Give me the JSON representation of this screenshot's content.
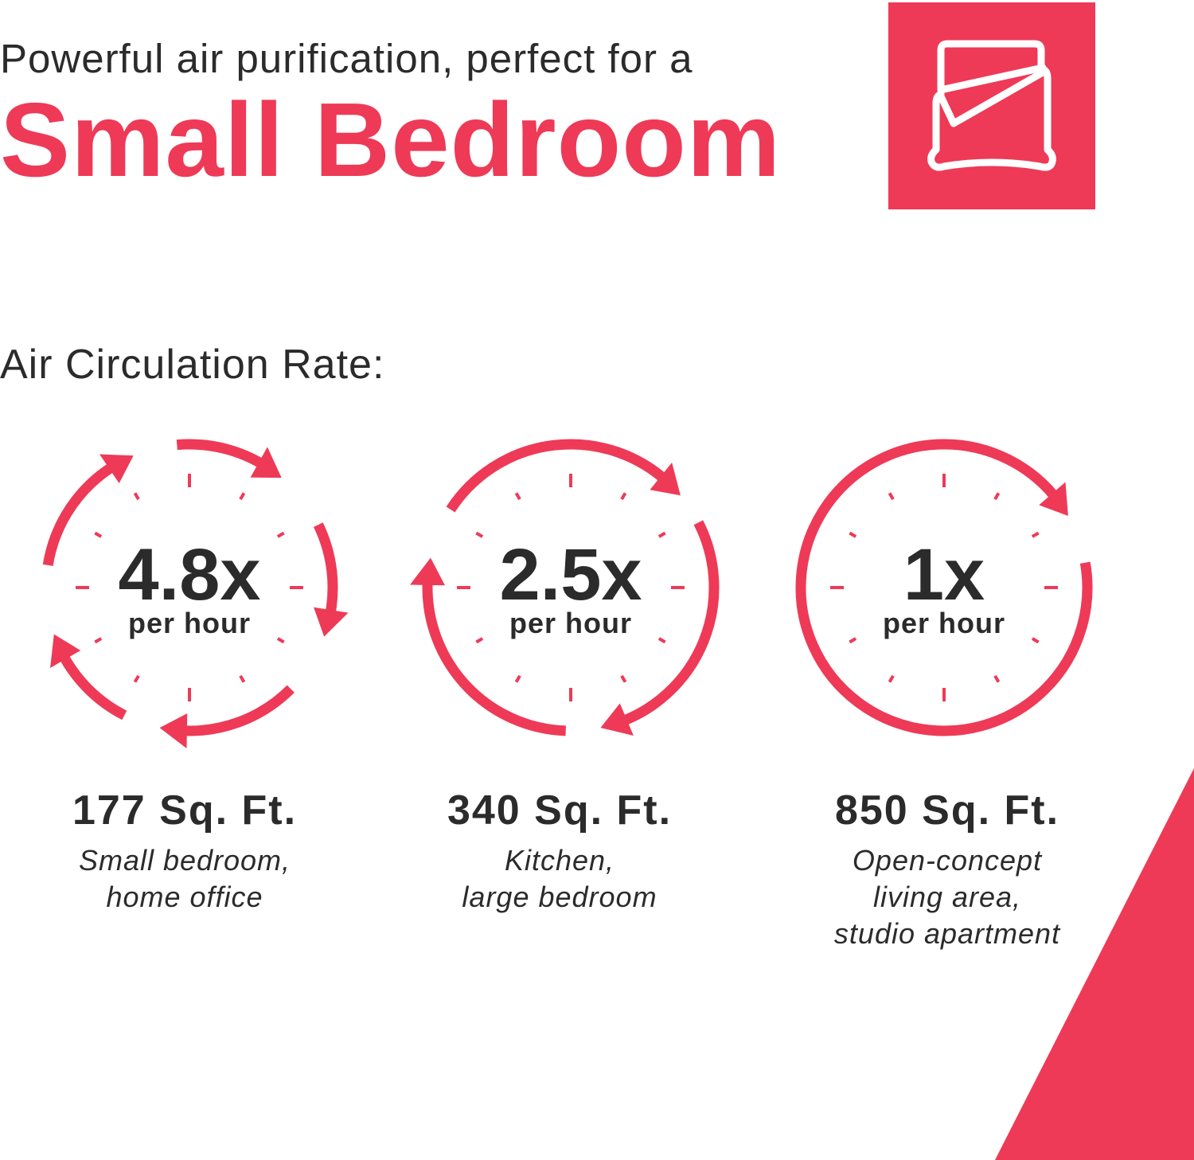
{
  "header": {
    "intro": "Powerful air purification, perfect for a",
    "title": "Small Bedroom",
    "badge_icon": "bed-icon"
  },
  "section_label": "Air Circulation Rate:",
  "colors": {
    "accent": "#ee3a57",
    "text": "#2b2b2b",
    "background": "#ffffff"
  },
  "cards": [
    {
      "rate": "4.8x",
      "unit": "per hour",
      "area": "177 Sq. Ft.",
      "desc": [
        "Small bedroom,",
        "home office"
      ],
      "arrows": 5
    },
    {
      "rate": "2.5x",
      "unit": "per hour",
      "area": "340 Sq. Ft.",
      "desc": [
        "Kitchen,",
        "large bedroom"
      ],
      "arrows": 3
    },
    {
      "rate": "1x",
      "unit": "per hour",
      "area": "850 Sq. Ft.",
      "desc": [
        "Open-concept",
        "living area,",
        "studio apartment"
      ],
      "arrows": 1
    }
  ]
}
